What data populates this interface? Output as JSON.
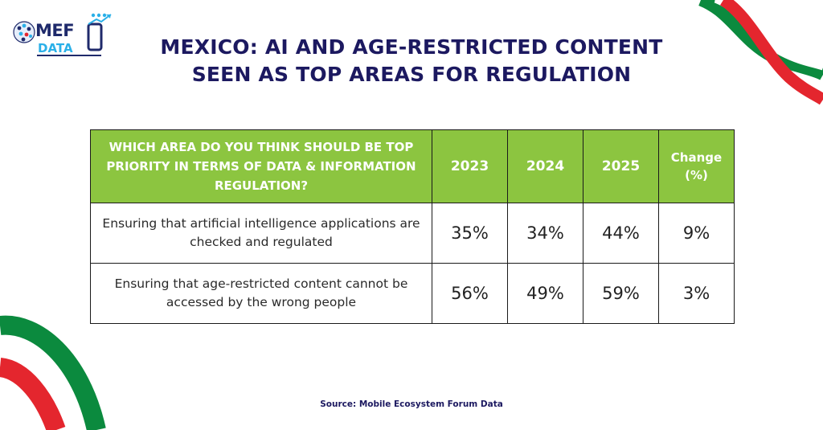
{
  "brand": {
    "logo_text_main": "MEF",
    "logo_text_sub": "DATA",
    "colors": {
      "navy": "#1f2a6b",
      "cyan": "#2bb0e8"
    }
  },
  "title": {
    "line1": "MEXICO: AI AND AGE-RESTRICTED CONTENT",
    "line2": "SEEN AS TOP AREAS FOR REGULATION"
  },
  "colors": {
    "header_green": "#8cc540",
    "title_navy": "#1c1960",
    "flag_green": "#0b8a3e",
    "flag_red": "#e4262e"
  },
  "chart_data": {
    "type": "table",
    "columns": [
      "WHICH AREA DO YOU THINK SHOULD BE TOP PRIORITY IN TERMS OF DATA & INFORMATION REGULATION?",
      "2023",
      "2024",
      "2025",
      "Change (%)"
    ],
    "rows": [
      {
        "label": "Ensuring that artificial intelligence applications are checked and regulated",
        "values": [
          "35%",
          "34%",
          "44%",
          "9%"
        ]
      },
      {
        "label": "Ensuring that age-restricted content cannot be accessed by the wrong people",
        "values": [
          "56%",
          "49%",
          "59%",
          "3%"
        ]
      }
    ]
  },
  "source": "Source: Mobile Ecosystem Forum Data"
}
